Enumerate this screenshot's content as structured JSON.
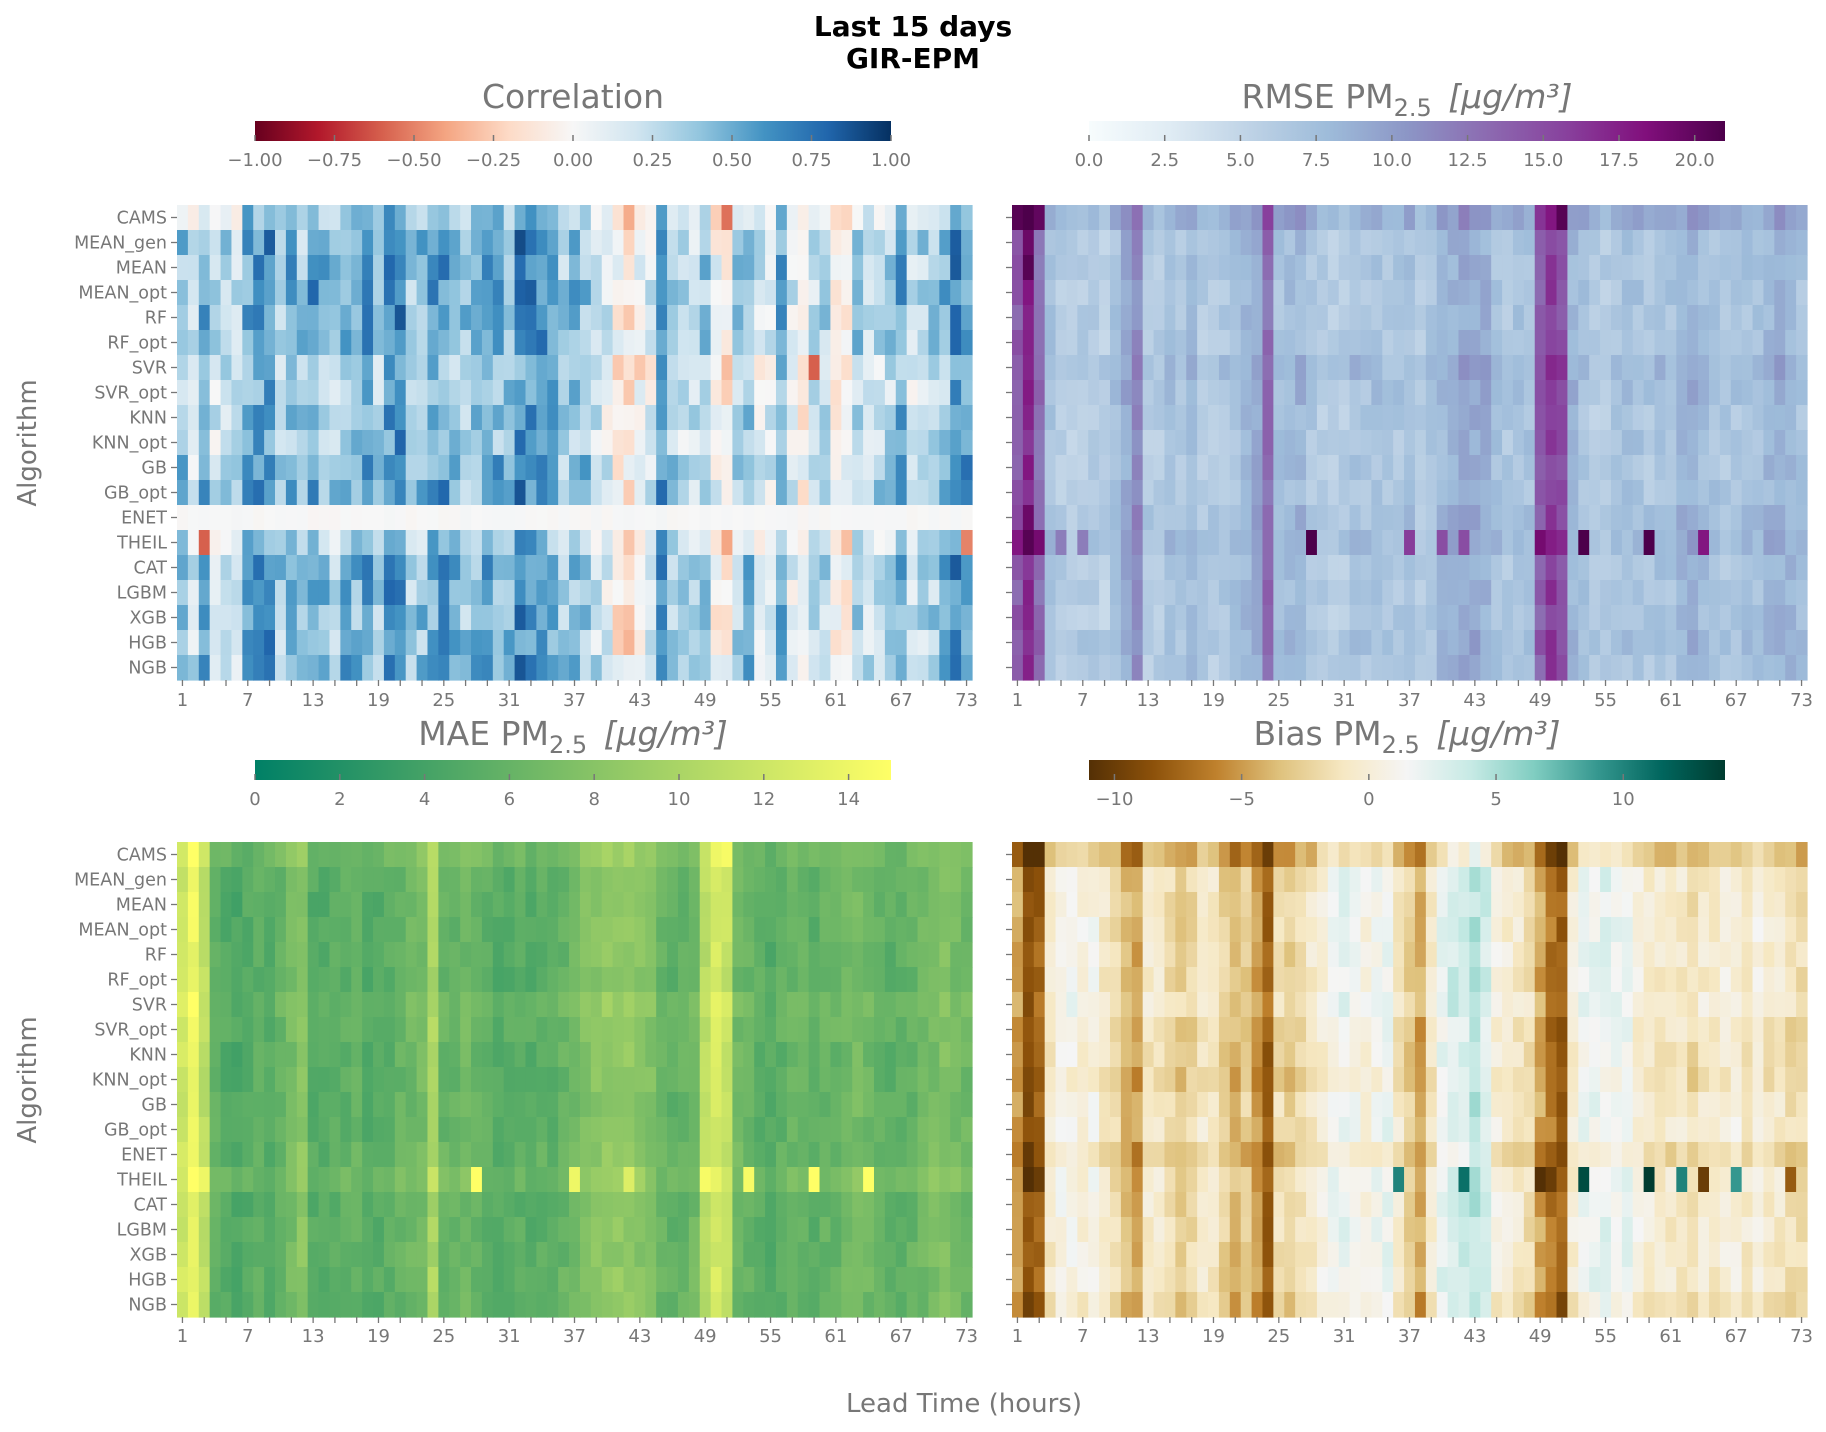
{
  "suptitle": [
    "Last 15 days",
    "GIR-EPM"
  ],
  "xlabel": "Lead Time (hours)",
  "ylabel": "Algorithm",
  "chart_data": [
    {
      "type": "heatmap",
      "title": {
        "main": "Correlation",
        "sub": "",
        "unit": ""
      },
      "colormap": [
        "#67001f",
        "#b2182b",
        "#d6604d",
        "#f4a582",
        "#fddbc7",
        "#f7f7f7",
        "#d1e5f0",
        "#92c5de",
        "#4393c3",
        "#2166ac",
        "#053061"
      ],
      "vmin": -1,
      "vmax": 1,
      "colorbar_ticks": [
        -1,
        -0.75,
        -0.5,
        -0.25,
        0,
        0.25,
        0.5,
        0.75,
        1
      ],
      "colorbar_tick_labels": [
        "−1.00",
        "−0.75",
        "−0.50",
        "−0.25",
        "0.00",
        "0.25",
        "0.50",
        "0.75",
        "1.00"
      ],
      "column_profile": [
        0.35,
        0.15,
        0.45,
        0.2,
        0.3,
        0.2,
        0.5,
        0.55,
        0.6,
        0.3,
        0.45,
        0.3,
        0.55,
        0.4,
        0.3,
        0.45,
        0.4,
        0.5,
        0.35,
        0.6,
        0.7,
        0.3,
        0.4,
        0.5,
        0.55,
        0.45,
        0.35,
        0.4,
        0.5,
        0.45,
        0.4,
        0.65,
        0.6,
        0.55,
        0.5,
        0.3,
        0.4,
        0.35,
        0.2,
        0.1,
        -0.1,
        -0.15,
        0.0,
        0.1,
        0.6,
        0.3,
        0.25,
        0.2,
        0.35,
        0.0,
        -0.1,
        0.3,
        0.4,
        0.15,
        0.1,
        0.5,
        0.1,
        -0.05,
        0.2,
        0.3,
        0.0,
        -0.05,
        0.3,
        0.2,
        0.25,
        0.3,
        0.5,
        0.2,
        0.25,
        0.3,
        0.4,
        0.6,
        0.55
      ],
      "row_offsets": [
        -0.1,
        0.05,
        0.05,
        0.05,
        0.05,
        0.05,
        -0.1,
        -0.05,
        0.0,
        -0.05,
        0.05,
        0.05,
        0,
        -0.1,
        0.05,
        0.0,
        0.0,
        0.0,
        0.05
      ],
      "row_scale": [
        1,
        1,
        1,
        1,
        1,
        1,
        1,
        1,
        1,
        1,
        1,
        1,
        0,
        1,
        1,
        1,
        1,
        1,
        1
      ],
      "noise": 0.4,
      "special_cells": [
        [
          0,
          50,
          -0.55
        ],
        [
          13,
          2,
          -0.6
        ],
        [
          13,
          72,
          -0.5
        ],
        [
          6,
          58,
          -0.6
        ]
      ]
    },
    {
      "type": "heatmap",
      "title": {
        "main": "RMSE PM",
        "sub": "2.5",
        "unit": "[μg/m³]"
      },
      "colormap": [
        "#f7fcfd",
        "#e0ecf4",
        "#bfd3e6",
        "#9ebcda",
        "#8c96c6",
        "#8c6bb1",
        "#88419d",
        "#810f7c",
        "#4d004b"
      ],
      "vmin": 0,
      "vmax": 21,
      "colorbar_ticks": [
        0,
        2.5,
        5,
        7.5,
        10,
        12.5,
        15,
        17.5,
        20
      ],
      "colorbar_tick_labels": [
        "0.0",
        "2.5",
        "5.0",
        "7.5",
        "10.0",
        "12.5",
        "15.0",
        "17.5",
        "20.0"
      ],
      "column_profile": [
        14,
        17,
        13,
        7,
        6,
        5.5,
        6,
        6,
        5.5,
        7,
        9,
        11,
        6,
        6,
        7,
        6.5,
        7.5,
        6,
        6,
        6.5,
        7,
        8,
        9,
        13,
        7,
        7.5,
        8,
        6.5,
        6,
        5.5,
        6,
        7,
        6.5,
        7,
        6.5,
        6.5,
        7,
        6,
        6.5,
        8,
        8.5,
        9,
        9,
        8.5,
        7,
        6.5,
        7,
        7,
        14,
        16,
        15,
        8,
        7,
        6,
        6,
        6.5,
        7,
        7,
        6.5,
        7,
        7,
        8,
        8.5,
        7.5,
        7,
        6.5,
        6.5,
        7,
        7,
        8,
        8.5,
        8,
        7
      ],
      "row_offsets": [
        2,
        0,
        0,
        0,
        0,
        0,
        1,
        0.5,
        0,
        0,
        0,
        0,
        0.5,
        1,
        0,
        0,
        0,
        0.5,
        0
      ],
      "row_scale": [
        1,
        1,
        1,
        1,
        1,
        1,
        1,
        1,
        1,
        1,
        1,
        1,
        1,
        1,
        1,
        1,
        1,
        1,
        1
      ],
      "noise": 2.2,
      "special_cells": [
        [
          0,
          0,
          20.5
        ],
        [
          0,
          1,
          21
        ],
        [
          0,
          2,
          20
        ],
        [
          0,
          49,
          18
        ],
        [
          0,
          50,
          20.5
        ],
        [
          1,
          1,
          19.5
        ],
        [
          2,
          1,
          20.5
        ],
        [
          12,
          1,
          19.5
        ],
        [
          13,
          0,
          18
        ],
        [
          13,
          1,
          20.5
        ],
        [
          13,
          2,
          19
        ],
        [
          13,
          27,
          21
        ],
        [
          13,
          36,
          16
        ],
        [
          13,
          39,
          15
        ],
        [
          13,
          41,
          15
        ],
        [
          13,
          48,
          19
        ],
        [
          13,
          52,
          21
        ],
        [
          13,
          58,
          21
        ],
        [
          13,
          63,
          18
        ],
        [
          13,
          4,
          12
        ],
        [
          13,
          6,
          12
        ]
      ]
    },
    {
      "type": "heatmap",
      "title": {
        "main": "MAE PM",
        "sub": "2.5",
        "unit": "[μg/m³]"
      },
      "colormap": [
        "#008066",
        "#ffff66"
      ],
      "vmin": 0,
      "vmax": 15,
      "colorbar_ticks": [
        0,
        2,
        4,
        6,
        8,
        10,
        12,
        14
      ],
      "colorbar_tick_labels": [
        "0",
        "2",
        "4",
        "6",
        "8",
        "10",
        "12",
        "14"
      ],
      "column_profile": [
        12,
        14,
        11,
        6,
        5,
        4.5,
        5,
        5.5,
        5,
        6,
        7,
        8,
        5,
        5,
        5.5,
        5.5,
        6,
        5,
        5,
        5.5,
        6,
        6.5,
        7,
        10,
        6,
        6,
        6.5,
        6,
        5.5,
        5,
        5,
        5.5,
        5,
        5.5,
        5.5,
        6,
        6.5,
        7.5,
        8,
        8.5,
        8.5,
        8.5,
        8,
        7.5,
        6,
        5.5,
        6,
        6.5,
        11,
        12.5,
        11.5,
        6.5,
        6,
        5.5,
        5,
        5.5,
        6,
        6,
        5.5,
        6,
        6,
        6.5,
        7,
        6.5,
        6,
        5.5,
        5.5,
        6,
        6.5,
        7,
        7.5,
        7,
        6.5
      ],
      "row_offsets": [
        1,
        0,
        0,
        0,
        0,
        0,
        0.5,
        0.3,
        0,
        0,
        0,
        0,
        0.3,
        1,
        0,
        0,
        0,
        0.2,
        0
      ],
      "row_scale": [
        1,
        1,
        1,
        1,
        1,
        1,
        1,
        1,
        1,
        1,
        1,
        1,
        1,
        1,
        1,
        1,
        1,
        1,
        1
      ],
      "noise": 1.6,
      "special_cells": [
        [
          13,
          1,
          15
        ],
        [
          13,
          2,
          14
        ],
        [
          13,
          27,
          15
        ],
        [
          13,
          36,
          14
        ],
        [
          13,
          41,
          13
        ],
        [
          13,
          48,
          14.5
        ],
        [
          13,
          52,
          14.5
        ],
        [
          13,
          58,
          15
        ],
        [
          13,
          63,
          15
        ],
        [
          0,
          50,
          14.5
        ],
        [
          0,
          49,
          14
        ]
      ]
    },
    {
      "type": "heatmap",
      "title": {
        "main": "Bias PM",
        "sub": "2.5",
        "unit": "[μg/m³]"
      },
      "colormap": [
        "#543005",
        "#8c510a",
        "#bf812d",
        "#dfc27d",
        "#f6e8c3",
        "#f5f5f5",
        "#c7eae5",
        "#80cdc1",
        "#35978f",
        "#01665e",
        "#003c30"
      ],
      "vmin": -11,
      "vmax": 14,
      "colorbar_ticks": [
        -10,
        -5,
        0,
        5,
        10
      ],
      "colorbar_tick_labels": [
        "−10",
        "−5",
        "0",
        "5",
        "10"
      ],
      "column_profile": [
        -5,
        -9,
        -8,
        -1,
        0.5,
        0.5,
        0,
        0.5,
        -1,
        -2,
        -4,
        -5,
        -1,
        -1,
        -2,
        -3,
        -2.5,
        -1,
        -1,
        -3,
        -4,
        -3,
        -5,
        -8,
        -2,
        -3,
        -2,
        -1,
        0,
        1,
        1.5,
        1,
        0,
        1,
        1.5,
        -1,
        -3,
        -5,
        -1,
        2,
        3,
        3,
        4,
        3,
        0,
        -0.5,
        -1,
        -2,
        -5,
        -7,
        -8,
        -0.5,
        1.5,
        1.5,
        2,
        1.5,
        1.5,
        0,
        -0.5,
        -1,
        -1,
        -1,
        -2,
        -1,
        -1,
        0,
        0,
        -1,
        0,
        -1,
        -1,
        -2,
        -2
      ],
      "row_offsets": [
        -2.5,
        0.5,
        0.5,
        0.5,
        0.5,
        0.5,
        1,
        0,
        0,
        -0.5,
        0.5,
        0.5,
        -1,
        0.5,
        0.5,
        0.5,
        0.5,
        0.5,
        -0.5
      ],
      "row_scale": [
        1,
        1,
        1,
        1,
        1,
        1,
        1,
        1,
        1,
        1,
        1,
        1,
        1,
        1,
        1,
        1,
        1,
        1,
        1
      ],
      "noise": 2.2,
      "special_cells": [
        [
          13,
          1,
          -11
        ],
        [
          13,
          2,
          -10
        ],
        [
          13,
          35,
          10
        ],
        [
          13,
          41,
          11
        ],
        [
          13,
          48,
          -11
        ],
        [
          13,
          49,
          -10
        ],
        [
          13,
          52,
          13
        ],
        [
          13,
          58,
          14
        ],
        [
          13,
          61,
          10
        ],
        [
          13,
          63,
          -10
        ],
        [
          13,
          66,
          9
        ],
        [
          13,
          71,
          -8
        ],
        [
          0,
          1,
          -11
        ],
        [
          0,
          2,
          -11
        ],
        [
          0,
          23,
          -10
        ],
        [
          0,
          50,
          -11
        ]
      ]
    }
  ],
  "rows": [
    "CAMS",
    "MEAN_gen",
    "MEAN",
    "MEAN_opt",
    "RF",
    "RF_opt",
    "SVR",
    "SVR_opt",
    "KNN",
    "KNN_opt",
    "GB",
    "GB_opt",
    "ENET",
    "THEIL",
    "CAT",
    "LGBM",
    "XGB",
    "HGB",
    "NGB"
  ],
  "x_tick_labels": [
    "1",
    "7",
    "13",
    "19",
    "25",
    "31",
    "37",
    "43",
    "49",
    "55",
    "61",
    "67",
    "73"
  ],
  "n_columns": 73
}
